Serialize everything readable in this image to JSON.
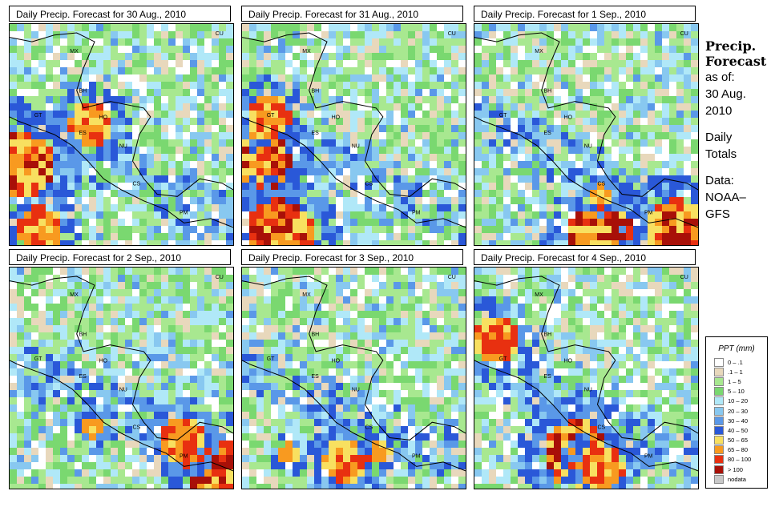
{
  "panels": [
    {
      "title": "Daily Precip. Forecast for  30 Aug., 2010",
      "seed": 11,
      "hot": [
        [
          0.03,
          0.62,
          3
        ],
        [
          0.35,
          0.43,
          2
        ],
        [
          0.12,
          0.9,
          2
        ]
      ]
    },
    {
      "title": "Daily Precip. Forecast for  31 Aug., 2010",
      "seed": 23,
      "hot": [
        [
          0.05,
          0.6,
          3
        ],
        [
          0.15,
          0.92,
          3
        ],
        [
          0.1,
          0.4,
          2
        ]
      ]
    },
    {
      "title": "Daily Precip. Forecast for  1 Sep., 2010",
      "seed": 37,
      "hot": [
        [
          0.55,
          0.94,
          3
        ],
        [
          0.9,
          0.92,
          3
        ],
        [
          0.55,
          0.75,
          1
        ]
      ]
    },
    {
      "title": "Daily Precip. Forecast for  2 Sep., 2010",
      "seed": 41,
      "hot": [
        [
          0.92,
          0.9,
          3
        ],
        [
          0.75,
          0.75,
          2
        ],
        [
          0.35,
          0.7,
          1
        ]
      ]
    },
    {
      "title": "Daily Precip. Forecast for  3 Sep., 2010",
      "seed": 53,
      "hot": [
        [
          0.45,
          0.85,
          2
        ],
        [
          0.6,
          0.8,
          1
        ],
        [
          0.2,
          0.82,
          1
        ]
      ]
    },
    {
      "title": "Daily Precip. Forecast for  4 Sep., 2010",
      "seed": 67,
      "hot": [
        [
          0.45,
          0.82,
          3
        ],
        [
          0.55,
          0.88,
          2
        ],
        [
          0.08,
          0.3,
          2
        ]
      ]
    }
  ],
  "map_labels": [
    "CU",
    "MX",
    "BH",
    "GT",
    "HO",
    "ES",
    "NU",
    "CS",
    "PM"
  ],
  "sidebar": {
    "heading1": "Precip.",
    "heading2": "Forecast",
    "asof": "as of:",
    "date1": "30 Aug.",
    "date2": "2010",
    "daily1": "Daily",
    "daily2": "Totals",
    "data1": "Data:",
    "data2": "NOAA–",
    "data3": "GFS"
  },
  "legend": {
    "title": "PPT (mm)",
    "items": [
      {
        "label": "0 – .1",
        "color": "#ffffff"
      },
      {
        "label": ".1 – 1",
        "color": "#e8d8bc"
      },
      {
        "label": "1 – 5",
        "color": "#a8e890"
      },
      {
        "label": "5 – 10",
        "color": "#7ad870"
      },
      {
        "label": "10 – 20",
        "color": "#b0e8f8"
      },
      {
        "label": "20 – 30",
        "color": "#88c8f0"
      },
      {
        "label": "30 – 40",
        "color": "#5a98e8"
      },
      {
        "label": "40 – 50",
        "color": "#2a58d8"
      },
      {
        "label": "50 – 65",
        "color": "#f8e060"
      },
      {
        "label": "65 – 80",
        "color": "#f89a20"
      },
      {
        "label": "80 – 100",
        "color": "#e83010"
      },
      {
        "label": "> 100",
        "color": "#a81008"
      },
      {
        "label": "nodata",
        "color": "#c8c8c8"
      }
    ]
  }
}
